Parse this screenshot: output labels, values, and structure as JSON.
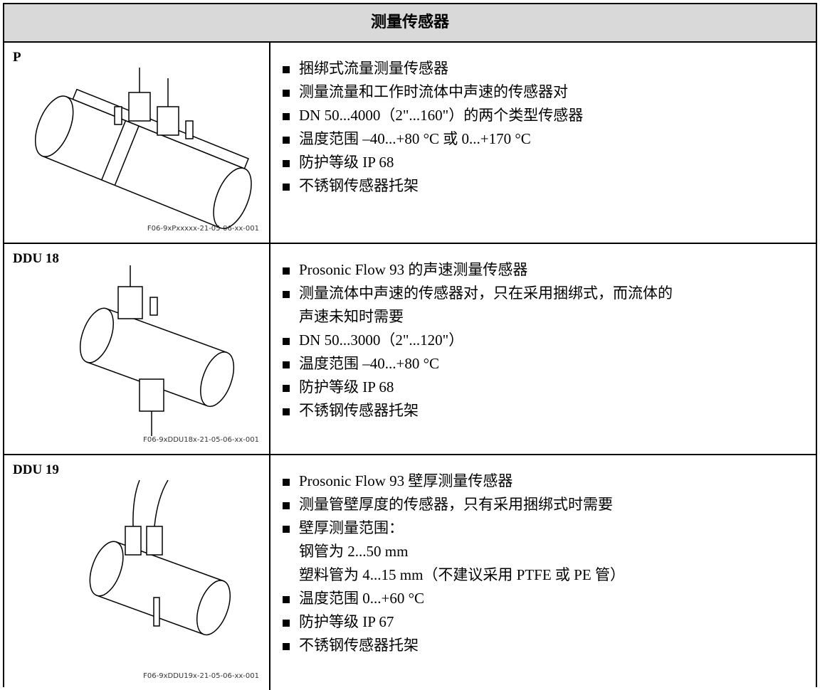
{
  "header": {
    "title": "测量传感器"
  },
  "rows": [
    {
      "label": "P",
      "caption": "F06-9xPxxxxx-21-05-06-xx-001",
      "items": [
        [
          "捆绑式流量测量传感器"
        ],
        [
          "测量流量和工作时流体中声速的传感器对"
        ],
        [
          "DN 50...4000（2\"...160\"）的两个类型传感器"
        ],
        [
          "温度范围 –40...+80 °C 或 0...+170 °C"
        ],
        [
          "防护等级 IP 68"
        ],
        [
          "不锈钢传感器托架"
        ]
      ]
    },
    {
      "label": "DDU 18",
      "caption": "F06-9xDDU18x-21-05-06-xx-001",
      "items": [
        [
          "Prosonic Flow 93 的声速测量传感器"
        ],
        [
          "测量流体中声速的传感器对，只在采用捆绑式，而流体的",
          "声速未知时需要"
        ],
        [
          "DN 50...3000（2\"...120\"）"
        ],
        [
          "温度范围 –40...+80 °C"
        ],
        [
          "防护等级 IP 68"
        ],
        [
          "不锈钢传感器托架"
        ]
      ]
    },
    {
      "label": "DDU 19",
      "caption": "F06-9xDDU19x-21-05-06-xx-001",
      "items": [
        [
          "Prosonic Flow 93 壁厚测量传感器"
        ],
        [
          "测量管壁厚度的传感器，只有采用捆绑式时需要"
        ],
        [
          "壁厚测量范围：",
          "钢管为 2...50 mm",
          "塑料管为 4...15 mm（不建议采用 PTFE 或 PE 管）"
        ],
        [
          "温度范围 0...+60 °C"
        ],
        [
          "防护等级 IP 67"
        ],
        [
          "不锈钢传感器托架"
        ]
      ]
    }
  ]
}
